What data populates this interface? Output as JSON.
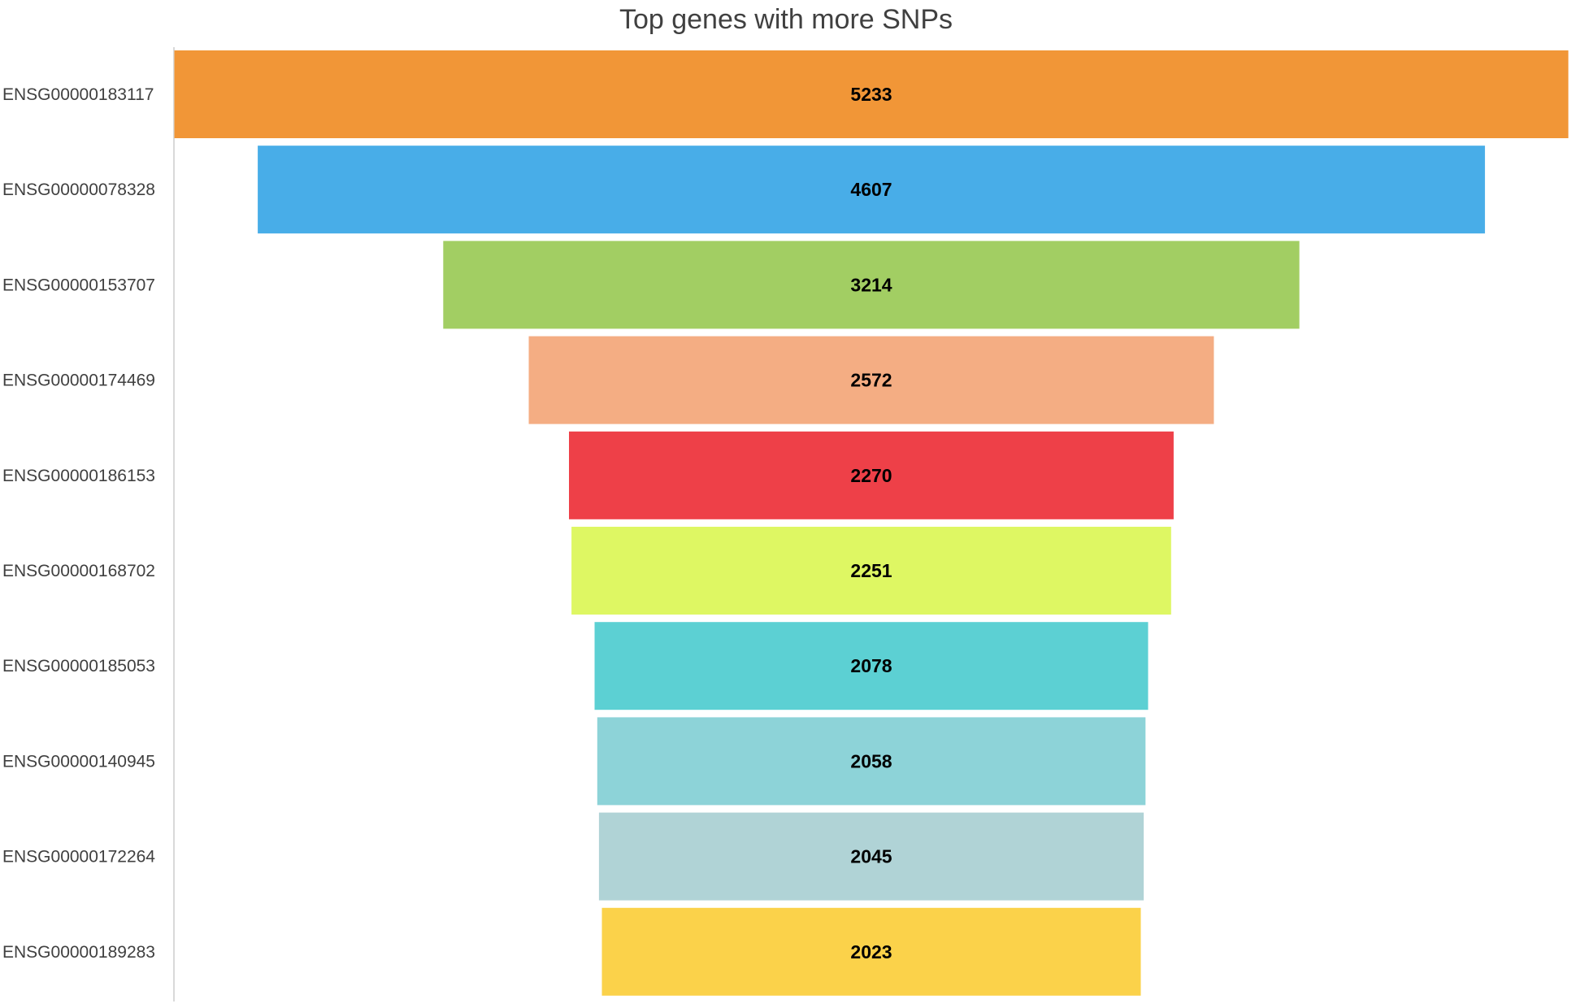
{
  "chart_data": {
    "type": "bar",
    "subtype": "funnel",
    "title": "Top genes with more SNPs",
    "categories": [
      "ENSG00000183117",
      "ENSG00000078328",
      "ENSG00000153707",
      "ENSG00000174469",
      "ENSG00000186153",
      "ENSG00000168702",
      "ENSG00000185053",
      "ENSG00000140945",
      "ENSG00000172264",
      "ENSG00000189283"
    ],
    "values": [
      5233,
      4607,
      3214,
      2572,
      2270,
      2251,
      2078,
      2058,
      2045,
      2023
    ],
    "colors": [
      "#F19637",
      "#48ADE8",
      "#A2CE63",
      "#F4AD83",
      "#EE4048",
      "#DEF763",
      "#5CD0D3",
      "#8DD3D8",
      "#B0D3D6",
      "#FBD24A"
    ],
    "axis_color": "#D9D9D9",
    "data_label_color": "#000000",
    "label_color": "#404040",
    "grid": false,
    "legend": "none",
    "orientation": "horizontal-centered"
  }
}
